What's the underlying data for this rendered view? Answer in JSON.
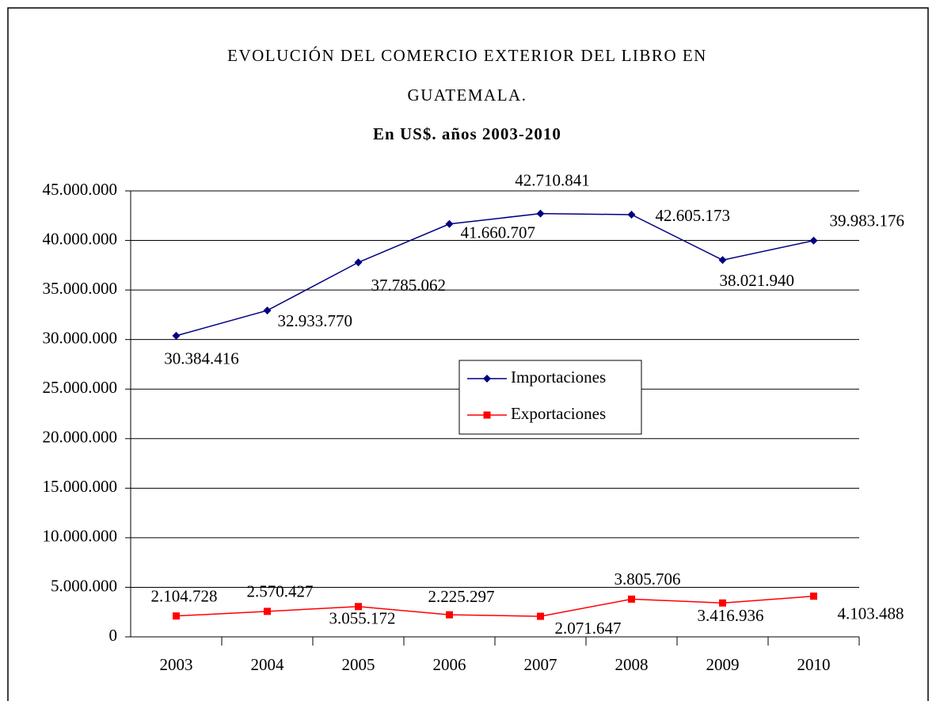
{
  "chart_data": {
    "type": "line",
    "title": "EVOLUCIÓN DEL COMERCIO EXTERIOR DEL LIBRO EN GUATEMALA.",
    "subtitle": "En US$. años 2003-2010",
    "categories": [
      "2003",
      "2004",
      "2005",
      "2006",
      "2007",
      "2008",
      "2009",
      "2010"
    ],
    "series": [
      {
        "name": "Importaciones",
        "color": "#000080",
        "marker": "diamond",
        "values": [
          30384416,
          32933770,
          37785062,
          41660707,
          42710841,
          42605173,
          38021940,
          39983176
        ],
        "value_labels": [
          "30.384.416",
          "32.933.770",
          "37.785.062",
          "41.660.707",
          "42.710.841",
          "42.605.173",
          "38.021.940",
          "39.983.176"
        ]
      },
      {
        "name": "Exportaciones",
        "color": "#ff0000",
        "marker": "square",
        "values": [
          2104728,
          2570427,
          3055172,
          2225297,
          2071647,
          3805706,
          3416936,
          4103488
        ],
        "value_labels": [
          "2.104.728",
          "2.570.427",
          "3.055.172",
          "2.225.297",
          "2.071.647",
          "3.805.706",
          "3.416.936",
          "4.103.488"
        ]
      }
    ],
    "ylim": [
      0,
      45000000
    ],
    "yticks": [
      0,
      {
        "value": 5000000,
        "label": "5.000.000"
      },
      {
        "value": 10000000,
        "label": "10.000.000"
      },
      {
        "value": 15000000,
        "label": "15.000.000"
      },
      {
        "value": 20000000,
        "label": "20.000.000"
      },
      {
        "value": 25000000,
        "label": "25.000.000"
      },
      {
        "value": 30000000,
        "label": "30.000.000"
      },
      {
        "value": 35000000,
        "label": "35.000.000"
      },
      {
        "value": 40000000,
        "label": "40.000.000"
      },
      {
        "value": 45000000,
        "label": "45.000.000"
      }
    ],
    "grid": true,
    "legend": "center"
  }
}
